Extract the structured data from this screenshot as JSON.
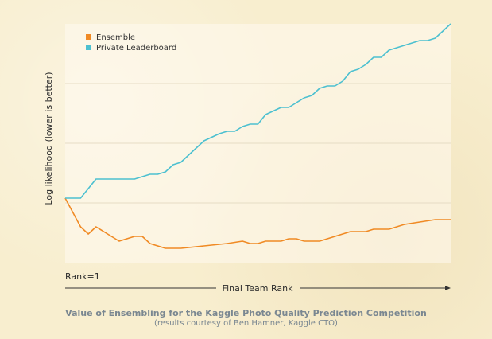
{
  "chart_data": {
    "type": "line",
    "ylabel": "Log likelihood (lower is better)",
    "xlabel": "Final Team Rank",
    "x_start_label": "Rank=1",
    "caption": "Value of Ensembling for the Kaggle Photo Quality Prediction Competition",
    "subcaption": "(results courtesy of Ben Hamner, Kaggle CTO)",
    "legend_position": "top-left",
    "grid": true,
    "x_range": [
      0,
      100
    ],
    "y_range": [
      0,
      100
    ],
    "series": [
      {
        "name": "Ensemble",
        "color": "#f08a24",
        "points": [
          [
            0,
            27
          ],
          [
            4,
            15
          ],
          [
            6,
            12
          ],
          [
            8,
            15
          ],
          [
            10,
            13
          ],
          [
            14,
            9
          ],
          [
            18,
            11
          ],
          [
            20,
            11
          ],
          [
            22,
            8
          ],
          [
            26,
            6
          ],
          [
            30,
            6
          ],
          [
            36,
            7
          ],
          [
            42,
            8
          ],
          [
            46,
            9
          ],
          [
            48,
            8
          ],
          [
            50,
            8
          ],
          [
            52,
            9
          ],
          [
            56,
            9
          ],
          [
            58,
            10
          ],
          [
            60,
            10
          ],
          [
            62,
            9
          ],
          [
            66,
            9
          ],
          [
            70,
            11
          ],
          [
            74,
            13
          ],
          [
            78,
            13
          ],
          [
            80,
            14
          ],
          [
            84,
            14
          ],
          [
            88,
            16
          ],
          [
            92,
            17
          ],
          [
            96,
            18
          ],
          [
            100,
            18
          ]
        ]
      },
      {
        "name": "Private Leaderboard",
        "color": "#4cc0d0",
        "points": [
          [
            0,
            27
          ],
          [
            4,
            27
          ],
          [
            8,
            35
          ],
          [
            12,
            35
          ],
          [
            16,
            35
          ],
          [
            18,
            35
          ],
          [
            22,
            37
          ],
          [
            24,
            37
          ],
          [
            26,
            38
          ],
          [
            28,
            41
          ],
          [
            30,
            42
          ],
          [
            32,
            45
          ],
          [
            36,
            51
          ],
          [
            40,
            54
          ],
          [
            42,
            55
          ],
          [
            44,
            55
          ],
          [
            46,
            57
          ],
          [
            48,
            58
          ],
          [
            50,
            58
          ],
          [
            52,
            62
          ],
          [
            56,
            65
          ],
          [
            58,
            65
          ],
          [
            60,
            67
          ],
          [
            62,
            69
          ],
          [
            64,
            70
          ],
          [
            66,
            73
          ],
          [
            68,
            74
          ],
          [
            70,
            74
          ],
          [
            72,
            76
          ],
          [
            74,
            80
          ],
          [
            76,
            81
          ],
          [
            78,
            83
          ],
          [
            80,
            86
          ],
          [
            82,
            86
          ],
          [
            84,
            89
          ],
          [
            86,
            90
          ],
          [
            88,
            91
          ],
          [
            90,
            92
          ],
          [
            92,
            93
          ],
          [
            94,
            93
          ],
          [
            96,
            94
          ],
          [
            98,
            97
          ],
          [
            100,
            100
          ]
        ]
      }
    ]
  }
}
